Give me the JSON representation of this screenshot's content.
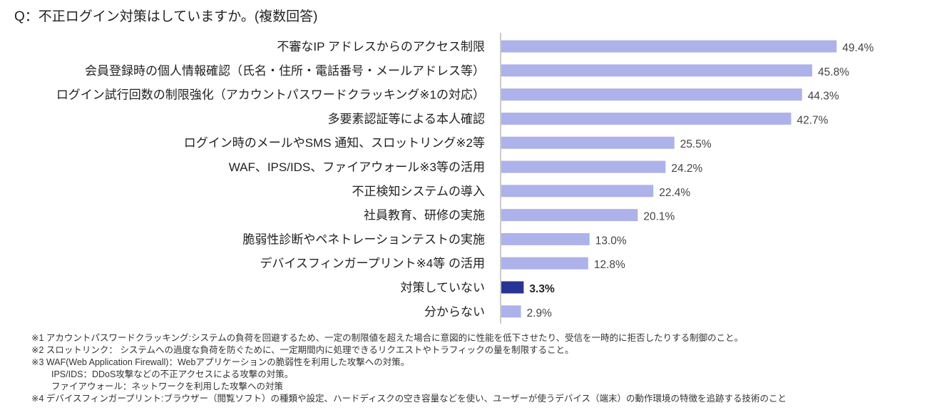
{
  "chart_data": {
    "type": "bar",
    "orientation": "horizontal",
    "title": "Q：不正ログイン対策はしていますか。(複数回答)",
    "categories": [
      "不審なIP アドレスからのアクセス制限",
      "会員登録時の個人情報確認（氏名・住所・電話番号・メールアドレス等）",
      "ログイン試行回数の制限強化（アカウントパスワードクラッキング※1の対応）",
      "多要素認証等による本人確認",
      "ログイン時のメールやSMS 通知、スロットリング※2等",
      "WAF、IPS/IDS、ファイアウォール※3等の活用",
      "不正検知システムの導入",
      "社員教育、研修の実施",
      "脆弱性診断やペネトレーションテストの実施",
      "デバイスフィンガープリント※4等 の活用",
      "対策していない",
      "分からない"
    ],
    "values": [
      49.4,
      45.8,
      44.3,
      42.7,
      25.5,
      24.2,
      22.4,
      20.1,
      13.0,
      12.8,
      3.3,
      2.9
    ],
    "value_labels": [
      "49.4%",
      "45.8%",
      "44.3%",
      "42.7%",
      "25.5%",
      "24.2%",
      "22.4%",
      "20.1%",
      "13.0%",
      "12.8%",
      "3.3%",
      "2.9%"
    ],
    "highlight_index": 10,
    "unit": "%",
    "xlim": [
      0,
      60
    ],
    "grid": false,
    "colors": {
      "bar": "#aeb2ea",
      "highlight": "#283593",
      "axis": "#cccccc"
    }
  },
  "footnotes": [
    "※1 アカウントパスワードクラッキング:システムの負荷を回避するため、一定の制限値を超えた場合に意図的に性能を低下させたり、受信を一時的に拒否したりする制御のこと。",
    "※2 スロットリンク： システムへの過度な負荷を防ぐために、一定期間内に処理できるリクエストやトラフィックの量を制限すること。",
    "※3 WAF(Web Application Firewall)：Webアプリケーションの脆弱性を利用した攻撃への対策。",
    "IPS/IDS：DDoS攻撃などの不正アクセスによる攻撃の対策。",
    "ファイアウォール：ネットワークを利用した攻撃への対策",
    "※4 デバイスフィンガープリント:ブラウザー（閲覧ソフト）の種類や設定、ハードディスクの空き容量などを使い、ユーザーが使うデバイス（端末）の動作環境の特徴を追跡する技術のこと"
  ]
}
